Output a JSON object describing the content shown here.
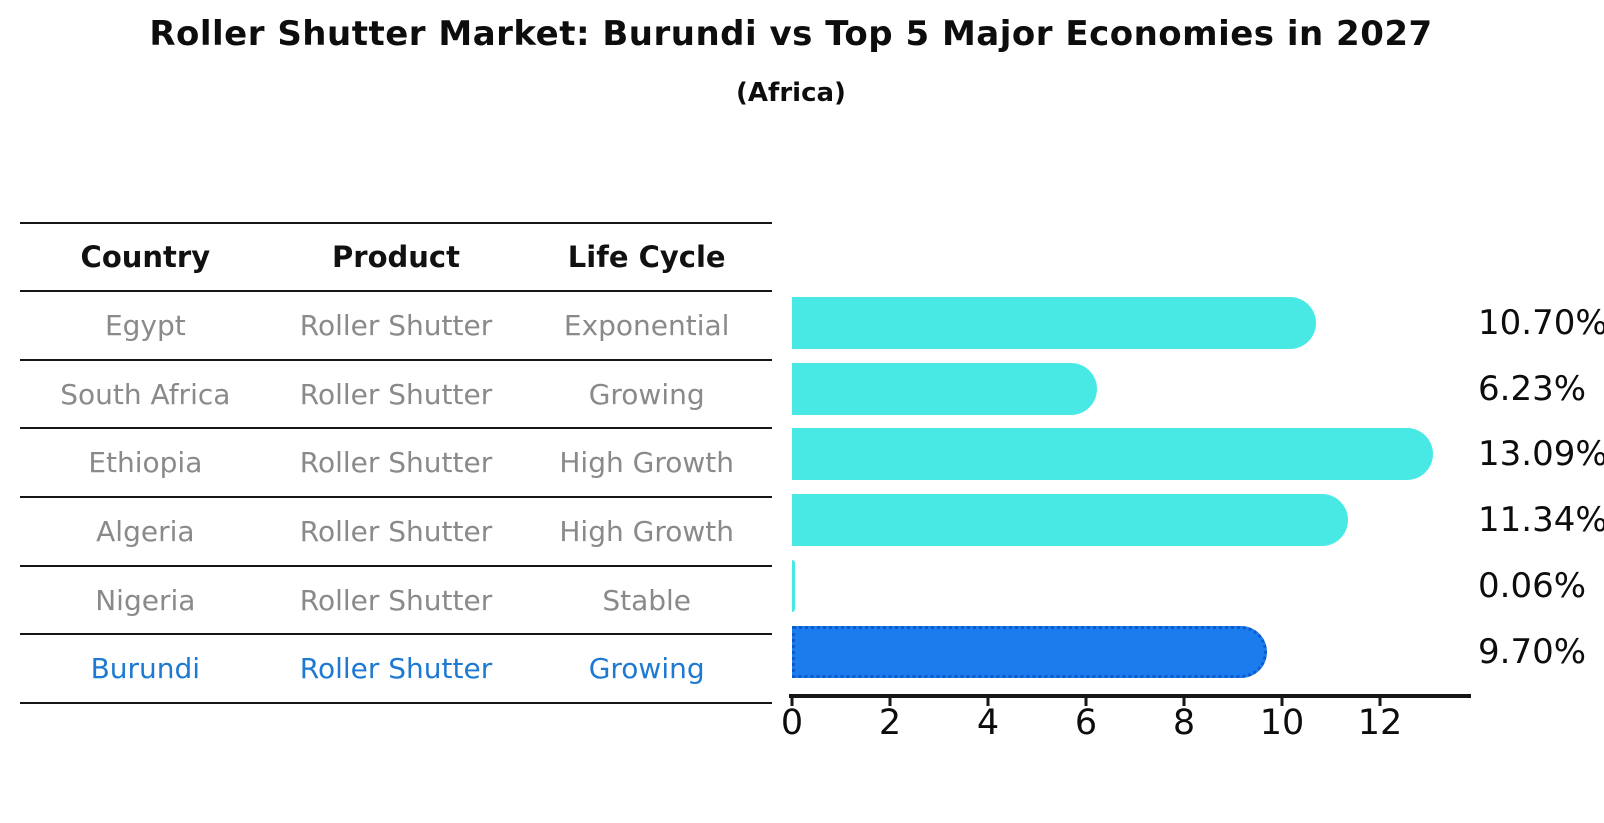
{
  "chart_data": {
    "type": "bar",
    "orientation": "horizontal",
    "title": "Roller Shutter Market: Burundi vs Top 5 Major Economies in 2027",
    "subtitle": "(Africa)",
    "categories": [
      "Egypt",
      "South Africa",
      "Ethiopia",
      "Algeria",
      "Nigeria",
      "Burundi"
    ],
    "values": [
      10.7,
      6.23,
      13.09,
      11.34,
      0.06,
      9.7
    ],
    "value_labels": [
      "10.70%",
      "6.23%",
      "13.09%",
      "11.34%",
      "0.06%",
      "9.70%"
    ],
    "unit": "%",
    "x_ticks": [
      0,
      2,
      4,
      6,
      8,
      10,
      12
    ],
    "xlim": [
      0,
      13.8
    ],
    "xlabel": "",
    "ylabel": "",
    "grid": false,
    "legend": false,
    "bar_color": "#48E9E4",
    "highlight_index": 5,
    "highlight_color": "#1B7CEE",
    "highlight_border_color": "#0C5BCD",
    "highlight_text_color": "#1E79D2"
  },
  "table": {
    "headers": [
      "Country",
      "Product",
      "Life Cycle"
    ],
    "rows": [
      {
        "country": "Egypt",
        "product": "Roller Shutter",
        "life_cycle": "Exponential"
      },
      {
        "country": "South Africa",
        "product": "Roller Shutter",
        "life_cycle": "Growing"
      },
      {
        "country": "Ethiopia",
        "product": "Roller Shutter",
        "life_cycle": "High Growth"
      },
      {
        "country": "Algeria",
        "product": "Roller Shutter",
        "life_cycle": "High Growth"
      },
      {
        "country": "Nigeria",
        "product": "Roller Shutter",
        "life_cycle": "Stable"
      },
      {
        "country": "Burundi",
        "product": "Roller Shutter",
        "life_cycle": "Growing"
      }
    ]
  }
}
